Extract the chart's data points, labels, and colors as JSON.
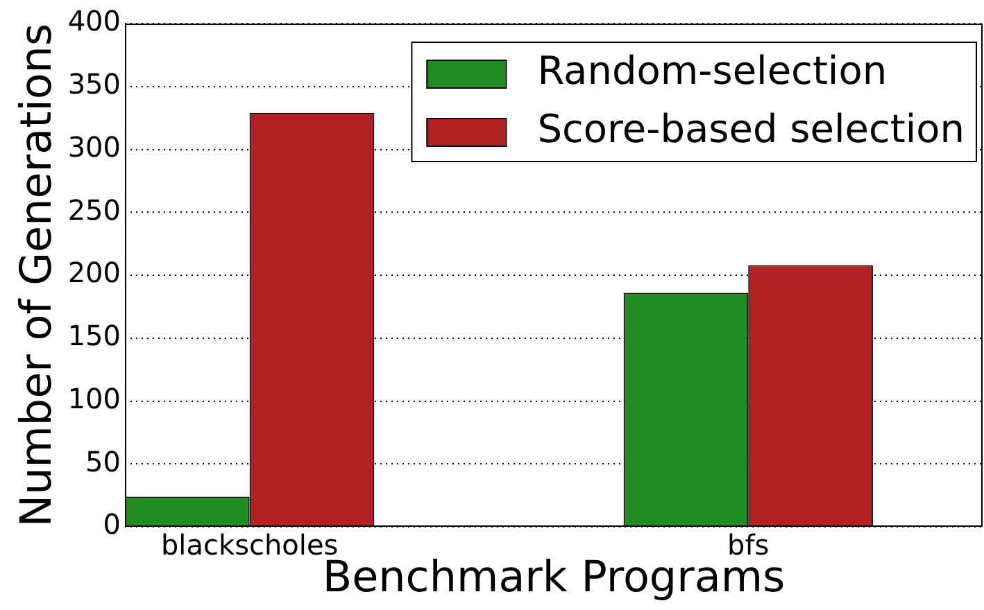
{
  "chart_data": {
    "type": "bar",
    "xlabel": "Benchmark Programs",
    "ylabel": "Number of Generations",
    "categories": [
      "blackscholes",
      "bfs"
    ],
    "series": [
      {
        "name": "Random-selection",
        "color": "#228b22",
        "values": [
          24,
          186
        ]
      },
      {
        "name": "Score-based selection",
        "color": "#b22222",
        "values": [
          329,
          208
        ]
      }
    ],
    "ylim": [
      0,
      400
    ],
    "yticks": [
      0,
      50,
      100,
      150,
      200,
      250,
      300,
      350,
      400
    ],
    "grid": "y",
    "legend": "top right"
  }
}
